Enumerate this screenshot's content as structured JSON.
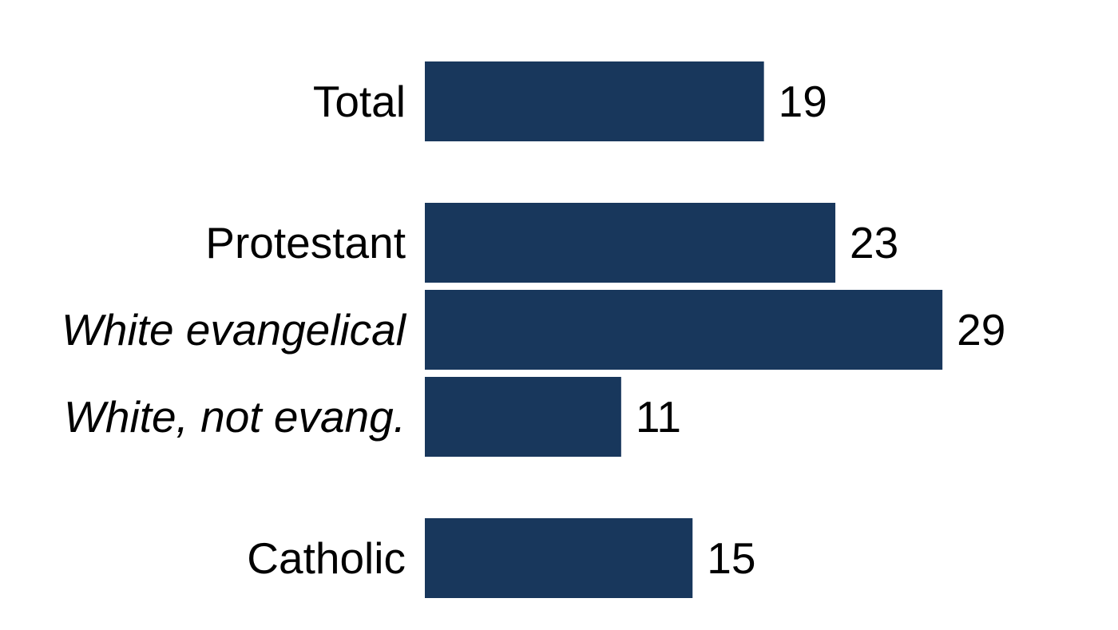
{
  "chart_data": {
    "type": "bar",
    "orientation": "horizontal",
    "categories": [
      "Total",
      "Protestant",
      "White evangelical",
      "White, not evang.",
      "Catholic"
    ],
    "italic_categories": [
      "White evangelical",
      "White, not evang."
    ],
    "values": [
      19,
      23,
      29,
      11,
      15
    ],
    "value_labels": [
      "19",
      "23",
      "29",
      "11",
      "15"
    ],
    "groups": [
      [
        "Total"
      ],
      [
        "Protestant",
        "White evangelical",
        "White, not evang."
      ],
      [
        "Catholic"
      ]
    ],
    "bar_color": "#18375c",
    "title": "",
    "xlabel": "",
    "ylabel": "",
    "grid": false,
    "legend": "none"
  }
}
